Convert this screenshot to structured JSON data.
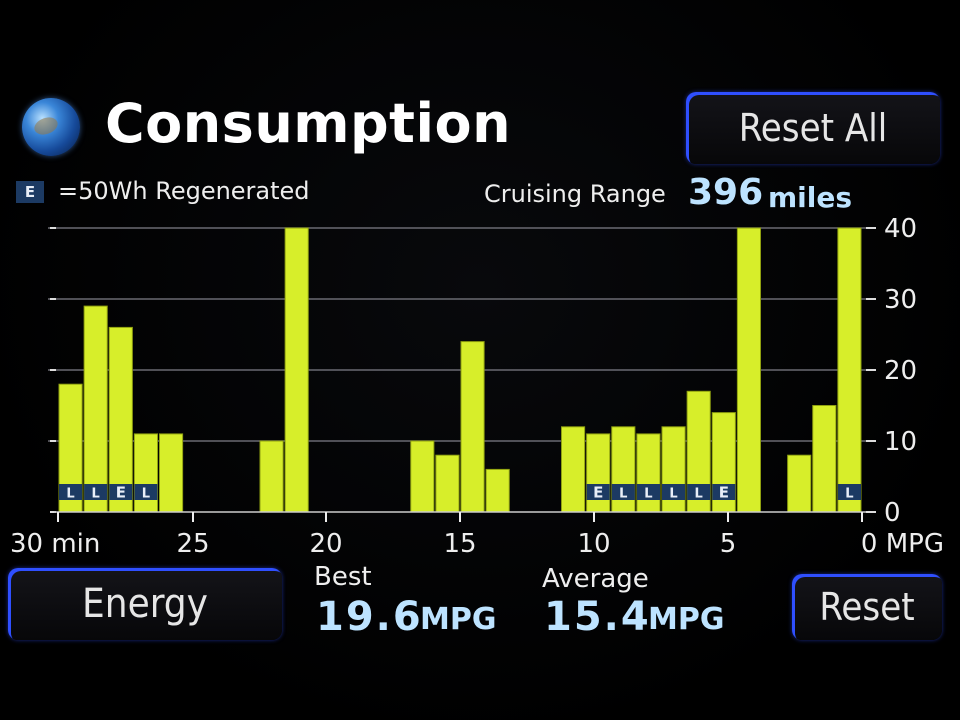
{
  "title": "Consumption",
  "icons": {
    "globe": "globe-icon"
  },
  "buttons": {
    "reset_all": "Reset All",
    "energy": "Energy",
    "reset": "Reset"
  },
  "legend": {
    "badge": "E",
    "text": "=50Wh Regenerated"
  },
  "cruising": {
    "label": "Cruising Range",
    "value": "396",
    "unit": "miles"
  },
  "stats": {
    "best": {
      "label": "Best",
      "value": "19.6",
      "unit": "MPG"
    },
    "average": {
      "label": "Average",
      "value": "15.4",
      "unit": "MPG"
    }
  },
  "colors": {
    "bar": "#d7ee2a",
    "bar_outline": "#8fa010",
    "grid": "#6a6a72",
    "accent": "#2f4fff",
    "badge": "#1c3a63",
    "value_text": "#bde3ff"
  },
  "chart_data": {
    "type": "bar",
    "xlabel_left": "30 min",
    "xlabel_right": "0 MPG",
    "x_ticks": [
      "30 min",
      "25",
      "20",
      "15",
      "10",
      "5",
      "0 MPG"
    ],
    "y_ticks": [
      "40",
      "30",
      "20",
      "10",
      "0"
    ],
    "ylim": [
      0,
      40
    ],
    "grid": true,
    "values": [
      18,
      29,
      26,
      11,
      11,
      0,
      0,
      0,
      10,
      40,
      0,
      0,
      0,
      0,
      10,
      8,
      24,
      6,
      0,
      0,
      12,
      11,
      12,
      11,
      12,
      17,
      14,
      40,
      0,
      8,
      15,
      40
    ],
    "regen_marks": [
      "L",
      "L",
      "E",
      "L",
      "",
      "",
      "",
      "",
      "",
      "",
      "",
      "",
      "",
      "",
      "",
      "",
      "",
      "",
      "",
      "",
      "",
      "E",
      "L",
      "L",
      "L",
      "L",
      "E",
      "",
      "",
      "",
      "",
      "L"
    ]
  }
}
